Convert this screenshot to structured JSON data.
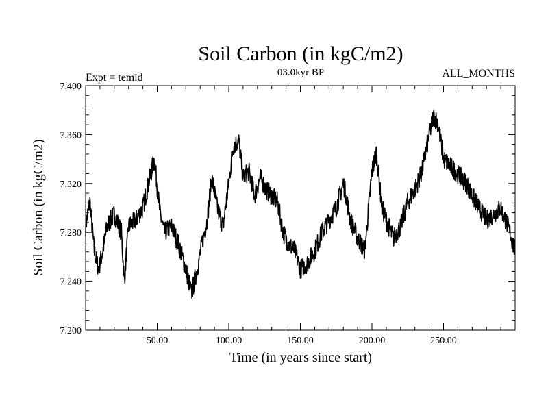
{
  "chart_data": {
    "type": "line",
    "title": "Soil Carbon (in kgC/m2)",
    "subtitle": "03.0kyr BP",
    "expt_label": "Expt = temid",
    "months_label": "ALL_MONTHS",
    "xlabel": "Time (in years since start)",
    "ylabel": "Soil Carbon (in kgC/m2)",
    "xlim": [
      0,
      300
    ],
    "ylim": [
      7.2,
      7.4
    ],
    "x_ticks": [
      50,
      100,
      150,
      200,
      250
    ],
    "x_tick_labels": [
      "50.00",
      "100.00",
      "150.00",
      "200.00",
      "250.00"
    ],
    "y_ticks": [
      7.2,
      7.24,
      7.28,
      7.32,
      7.36,
      7.4
    ],
    "y_tick_labels": [
      "7.200",
      "7.240",
      "7.280",
      "7.320",
      "7.360",
      "7.400"
    ],
    "grid": false,
    "series": [
      {
        "color": "#000000",
        "x": [
          0,
          3,
          6,
          9,
          12,
          15,
          20,
          25,
          27,
          30,
          35,
          40,
          45,
          48,
          52,
          55,
          60,
          65,
          70,
          74,
          78,
          82,
          85,
          88,
          92,
          96,
          100,
          103,
          107,
          110,
          114,
          118,
          122,
          126,
          130,
          134,
          138,
          142,
          146,
          150,
          155,
          160,
          165,
          170,
          175,
          180,
          182,
          185,
          190,
          195,
          200,
          203,
          207,
          210,
          215,
          220,
          225,
          230,
          235,
          240,
          243,
          246,
          250,
          254,
          258,
          262,
          266,
          270,
          275,
          280,
          285,
          290,
          295,
          300
        ],
        "y": [
          7.285,
          7.305,
          7.265,
          7.25,
          7.265,
          7.285,
          7.295,
          7.28,
          7.24,
          7.285,
          7.29,
          7.3,
          7.325,
          7.34,
          7.295,
          7.28,
          7.285,
          7.27,
          7.25,
          7.23,
          7.25,
          7.275,
          7.29,
          7.325,
          7.3,
          7.285,
          7.32,
          7.35,
          7.355,
          7.325,
          7.33,
          7.31,
          7.325,
          7.315,
          7.31,
          7.305,
          7.28,
          7.27,
          7.265,
          7.25,
          7.255,
          7.265,
          7.28,
          7.29,
          7.3,
          7.32,
          7.31,
          7.29,
          7.275,
          7.265,
          7.33,
          7.345,
          7.3,
          7.29,
          7.275,
          7.285,
          7.305,
          7.315,
          7.33,
          7.36,
          7.375,
          7.37,
          7.34,
          7.335,
          7.33,
          7.325,
          7.32,
          7.31,
          7.3,
          7.29,
          7.295,
          7.3,
          7.285,
          7.265
        ]
      }
    ]
  }
}
